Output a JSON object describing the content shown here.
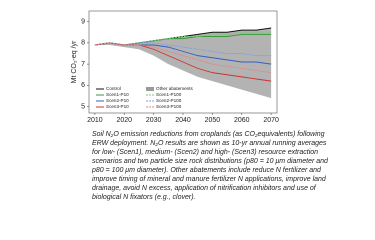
{
  "chart_data": {
    "type": "line",
    "y_label": "Mt CO₂-eq /yr",
    "x": [
      2010,
      2015,
      2020,
      2025,
      2030,
      2035,
      2040,
      2045,
      2050,
      2055,
      2060,
      2065,
      2070
    ],
    "xlim": [
      2008,
      2072
    ],
    "xticks": [
      2010,
      2020,
      2030,
      2040,
      2050,
      2060,
      2070
    ],
    "ylim": [
      4.7,
      9.5
    ],
    "yticks": [
      5,
      6,
      7,
      8,
      9
    ],
    "band": {
      "name": "Other abatements",
      "color": "#9a9a9a",
      "upper": [
        7.9,
        8.0,
        7.9,
        8.0,
        8.1,
        8.2,
        8.3,
        8.4,
        8.5,
        8.5,
        8.6,
        8.6,
        8.7
      ],
      "lower": [
        7.9,
        7.9,
        7.8,
        7.7,
        7.4,
        7.0,
        6.7,
        6.4,
        6.2,
        6.0,
        5.8,
        5.6,
        5.4
      ]
    },
    "series": [
      {
        "name": "Control",
        "color": "#111111",
        "dashed": false,
        "values": [
          7.9,
          8.0,
          7.9,
          8.0,
          8.1,
          8.2,
          8.3,
          8.4,
          8.5,
          8.5,
          8.6,
          8.6,
          8.7
        ]
      },
      {
        "name": "Scen1-P10",
        "color": "#3a9a3a",
        "dashed": false,
        "values": [
          7.9,
          8.0,
          7.9,
          8.0,
          8.1,
          8.2,
          8.2,
          8.3,
          8.3,
          8.3,
          8.4,
          8.4,
          8.4
        ]
      },
      {
        "name": "Scen2-P10",
        "color": "#3060c0",
        "dashed": false,
        "values": [
          7.9,
          8.0,
          7.9,
          7.9,
          7.9,
          7.8,
          7.6,
          7.4,
          7.3,
          7.2,
          7.1,
          7.1,
          7.0
        ]
      },
      {
        "name": "Scen3-P10",
        "color": "#d03030",
        "dashed": false,
        "values": [
          7.9,
          8.0,
          7.9,
          7.9,
          7.7,
          7.4,
          7.1,
          6.8,
          6.6,
          6.5,
          6.4,
          6.3,
          6.2
        ]
      },
      {
        "name": "Scen1-P100",
        "color": "#7cc47c",
        "dashed": true,
        "values": [
          7.9,
          8.0,
          7.9,
          8.0,
          8.1,
          8.2,
          8.3,
          8.3,
          8.4,
          8.4,
          8.5,
          8.5,
          8.5
        ]
      },
      {
        "name": "Scen2-P100",
        "color": "#7f9fe0",
        "dashed": true,
        "values": [
          7.9,
          8.0,
          7.9,
          8.0,
          8.0,
          7.9,
          7.8,
          7.7,
          7.6,
          7.5,
          7.5,
          7.4,
          7.4
        ]
      },
      {
        "name": "Scen3-P100",
        "color": "#e88080",
        "dashed": true,
        "values": [
          7.9,
          8.0,
          7.9,
          7.9,
          7.8,
          7.6,
          7.4,
          7.2,
          7.0,
          6.9,
          6.8,
          6.7,
          6.6
        ]
      }
    ],
    "caption": [
      "Soil N₂O emission reductions from croplands (as CO₂equivalents) following",
      "ERW deployment. N₂O results are shown as 10-yr annual running averages",
      "for low- (Scen1), medium- (Scen2) and high- (Scen3) resource extraction",
      "scenarios and two particle size rock distributions (p80 = 10 μm diameter and",
      "p80 = 100 μm diameter). Other abatements include reduce N fertilizer and",
      "improve timing of mineral and manure fertilizer N applications, improve land",
      "drainage, avoid N excess, application of nitrification inhibitors and use of",
      "biological N fixators (e.g., clover)."
    ]
  }
}
